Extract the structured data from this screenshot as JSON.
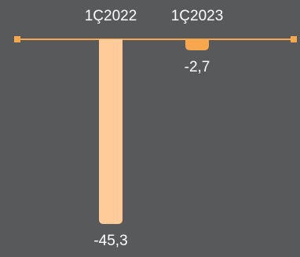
{
  "chart_data": {
    "type": "bar",
    "categories": [
      "1Ç2022",
      "1Ç2023"
    ],
    "values": [
      -45.3,
      -2.7
    ],
    "value_labels": [
      "-45,3",
      "-2,7"
    ],
    "ylim": [
      -45.3,
      0
    ],
    "grid": false,
    "colors": {
      "background": "#58595b",
      "bars": [
        "#ffcc99",
        "#f7a84f"
      ],
      "baseline": "#f7a84f",
      "text": "#ffffff"
    }
  }
}
